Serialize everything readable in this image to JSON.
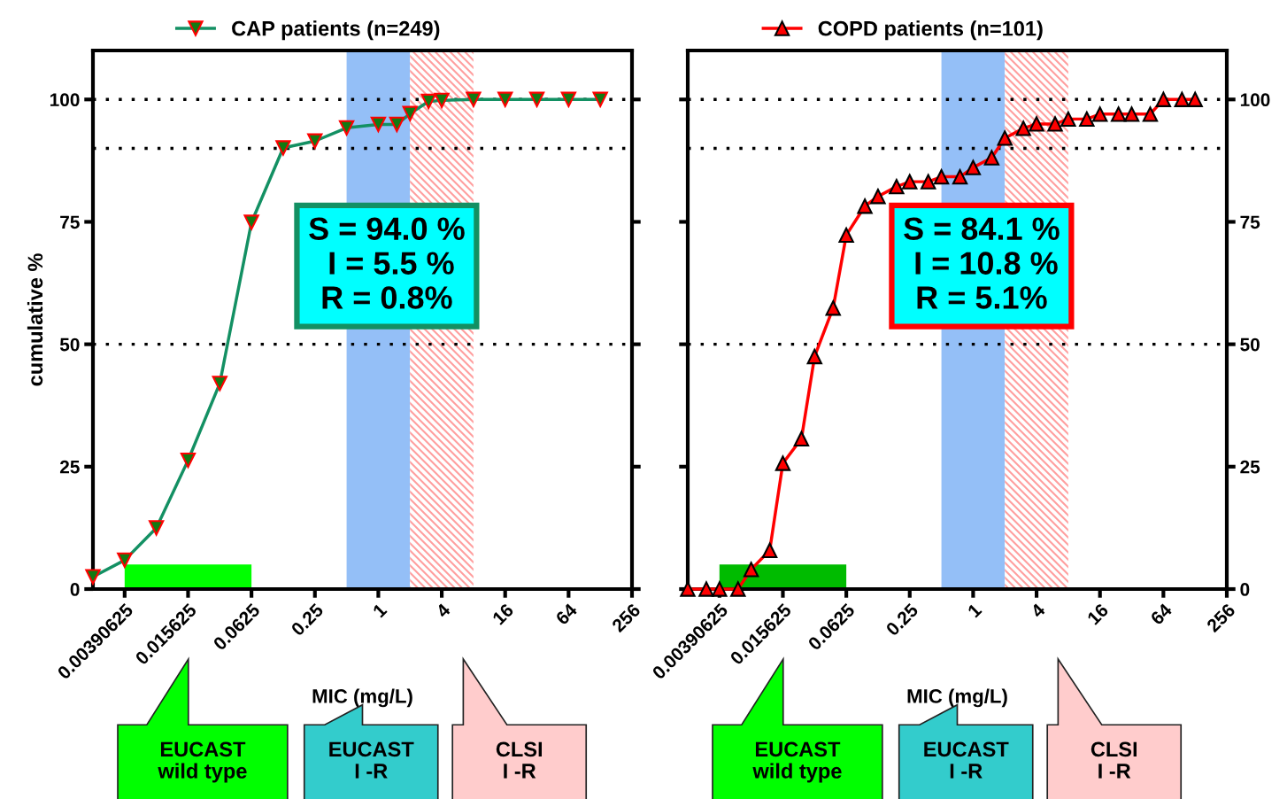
{
  "chart_data": [
    {
      "type": "line",
      "xlabel": "MIC (mg/L)",
      "ylabel": "cumulative %",
      "log": "x",
      "legend": "top",
      "line_style": "solid",
      "grid": false,
      "xlim": [
        0.001953125,
        256
      ],
      "xticks": [
        0.00390625,
        0.015625,
        0.0625,
        0.25,
        1,
        4,
        16,
        64,
        256
      ],
      "ylim": [
        0,
        110
      ],
      "yticks": [
        0,
        25,
        50,
        75,
        100
      ],
      "series": [
        {
          "name": "CAP patients (n=249)",
          "color": "#139063",
          "marker": "triangle",
          "x": [
            0.001953125,
            0.00390625,
            0.0078125,
            0.015625,
            0.03125,
            0.0625,
            0.125,
            0.25,
            0.5,
            1,
            1.5,
            2,
            3,
            4,
            8,
            16,
            32,
            64,
            128
          ],
          "values": [
            2.5,
            5.9,
            12.5,
            26.3,
            42.0,
            74.9,
            90.1,
            91.5,
            94.2,
            94.9,
            94.9,
            97.1,
            99.6,
            99.8,
            100,
            100,
            100,
            100,
            100
          ]
        },
        {
          "type": "area",
          "color": "#00ff00",
          "x": [
            0.00390625,
            0.0625
          ],
          "values": [
            5,
            5
          ]
        }
      ],
      "ref_lines": [
        {
          "axis": "y",
          "value": 50,
          "color": "#000000",
          "line_style": "dotted"
        },
        {
          "axis": "y",
          "value": 90,
          "color": "#000000",
          "line_style": "dotted"
        },
        {
          "axis": "y",
          "value": 100,
          "color": "#000000",
          "line_style": "dotted"
        }
      ],
      "bands": [
        {
          "axis": "x",
          "from": 0.5,
          "to": 2,
          "color": "#94bff7"
        },
        {
          "axis": "x",
          "from": 2,
          "to": 8,
          "color": "#ff9f9f"
        }
      ],
      "annotations": [
        "S = 94.0 %\n I = 5.5 %\nR = 0.8%",
        "EUCAST\nwild type",
        "EUCAST\nI -R",
        "CLSI\nI -R"
      ]
    },
    {
      "type": "line",
      "xlabel": "MIC (mg/L)",
      "log": "x",
      "legend": "top",
      "line_style": "solid",
      "grid": false,
      "xlim": [
        0.001953125,
        256
      ],
      "xticks": [
        0.00390625,
        0.015625,
        0.0625,
        0.25,
        1,
        4,
        16,
        64,
        256
      ],
      "ylim": [
        0,
        110
      ],
      "yticks": [
        0,
        25,
        50,
        75,
        100
      ],
      "series": [
        {
          "name": "COPD patients (n=101)",
          "color": "#ff0000",
          "marker": "triangle",
          "x": [
            0.001953125,
            0.0029296875,
            0.00390625,
            0.005859375,
            0.0078125,
            0.01171875,
            0.015625,
            0.0234375,
            0.03125,
            0.046875,
            0.0625,
            0.09375,
            0.125,
            0.1875,
            0.25,
            0.375,
            0.5,
            0.75,
            1,
            1.5,
            2,
            3,
            4,
            6,
            8,
            12,
            16,
            24,
            32,
            48,
            64,
            96,
            128
          ],
          "values": [
            0,
            0,
            0,
            0,
            4.0,
            7.9,
            25.7,
            30.7,
            47.5,
            57.4,
            72.3,
            78.2,
            80.2,
            82.2,
            83.2,
            83.2,
            84.2,
            84.2,
            86.1,
            88.1,
            92.1,
            94.1,
            95.0,
            95.0,
            96.0,
            96.0,
            97.0,
            97.0,
            97.0,
            97.0,
            100,
            100,
            100
          ]
        },
        {
          "type": "area",
          "color": "#00bb00",
          "x": [
            0.00390625,
            0.0625
          ],
          "values": [
            5,
            5
          ]
        }
      ],
      "ref_lines": [
        {
          "axis": "y",
          "value": 50,
          "color": "#000000",
          "line_style": "dotted"
        },
        {
          "axis": "y",
          "value": 90,
          "color": "#000000",
          "line_style": "dotted"
        },
        {
          "axis": "y",
          "value": 100,
          "color": "#000000",
          "line_style": "dotted"
        }
      ],
      "bands": [
        {
          "axis": "x",
          "from": 0.5,
          "to": 2,
          "color": "#94bff7"
        },
        {
          "axis": "x",
          "from": 2,
          "to": 8,
          "color": "#ff9f9f"
        }
      ],
      "annotations": [
        "S = 84.1 %\n I = 10.8 %\nR = 5.1%",
        "EUCAST\nwild type",
        "EUCAST\nI -R",
        "CLSI\nI -R"
      ]
    }
  ]
}
